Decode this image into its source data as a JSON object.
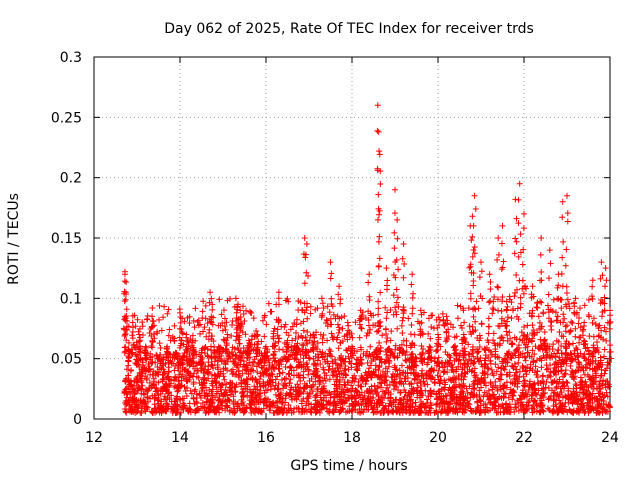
{
  "chart_data": {
    "type": "scatter",
    "title": "Day 062 of 2025, Rate Of TEC Index for receiver trds",
    "xlabel": "GPS time / hours",
    "ylabel": "ROTI / TECUs",
    "xlim": [
      12,
      24
    ],
    "ylim": [
      0,
      0.3
    ],
    "xticks": [
      12,
      14,
      16,
      18,
      20,
      22,
      24
    ],
    "xtick_labels": [
      "12",
      "14",
      "16",
      "18",
      "20",
      "22",
      "24"
    ],
    "yticks": [
      0,
      0.05,
      0.1,
      0.15,
      0.2,
      0.25,
      0.3
    ],
    "ytick_labels": [
      "0",
      "0.05",
      "0.1",
      "0.15",
      "0.2",
      "0.25",
      "0.3"
    ],
    "grid": true,
    "marker": "+",
    "series": [
      {
        "name": "ROTI",
        "color": "#ff0000",
        "x": [
          12.72,
          12.72,
          12.74,
          12.8,
          12.9,
          13.05,
          13.2,
          13.35,
          13.5,
          13.7,
          13.9,
          14.0,
          14.15,
          14.3,
          14.5,
          14.7,
          14.75,
          14.9,
          15.1,
          15.3,
          15.35,
          15.4,
          15.6,
          15.8,
          16.0,
          16.2,
          16.3,
          16.5,
          16.7,
          16.9,
          16.95,
          17.1,
          17.3,
          17.5,
          17.7,
          17.9,
          18.0,
          18.2,
          18.4,
          18.6,
          18.62,
          18.63,
          18.8,
          19.0,
          19.05,
          19.2,
          19.4,
          19.6,
          19.8,
          20.0,
          20.2,
          20.4,
          20.6,
          20.75,
          20.8,
          20.85,
          21.0,
          21.2,
          21.4,
          21.5,
          21.6,
          21.8,
          21.9,
          22.0,
          22.2,
          22.4,
          22.6,
          22.8,
          22.9,
          23.0,
          23.2,
          23.4,
          23.6,
          23.8,
          23.9,
          24.0
        ],
        "values": [
          0.122,
          0.12,
          0.105,
          0.058,
          0.08,
          0.07,
          0.06,
          0.085,
          0.05,
          0.06,
          0.055,
          0.088,
          0.07,
          0.065,
          0.045,
          0.105,
          0.095,
          0.06,
          0.07,
          0.1,
          0.095,
          0.09,
          0.065,
          0.07,
          0.06,
          0.075,
          0.105,
          0.065,
          0.06,
          0.15,
          0.145,
          0.07,
          0.1,
          0.13,
          0.11,
          0.08,
          0.06,
          0.09,
          0.12,
          0.26,
          0.238,
          0.222,
          0.125,
          0.19,
          0.165,
          0.145,
          0.12,
          0.09,
          0.06,
          0.07,
          0.085,
          0.06,
          0.07,
          0.16,
          0.168,
          0.185,
          0.13,
          0.12,
          0.15,
          0.16,
          0.09,
          0.182,
          0.195,
          0.17,
          0.11,
          0.15,
          0.14,
          0.12,
          0.18,
          0.185,
          0.1,
          0.08,
          0.115,
          0.13,
          0.125,
          0.09
        ],
        "band_x": [
          12.7,
          13.0,
          13.5,
          14.0,
          14.5,
          15.0,
          15.5,
          16.0,
          16.5,
          17.0,
          17.5,
          18.0,
          18.5,
          19.0,
          19.5,
          20.0,
          20.5,
          21.0,
          21.5,
          22.0,
          22.5,
          23.0,
          23.5,
          24.0
        ],
        "band_max": [
          0.05,
          0.055,
          0.055,
          0.055,
          0.06,
          0.06,
          0.06,
          0.055,
          0.06,
          0.06,
          0.055,
          0.05,
          0.055,
          0.06,
          0.055,
          0.05,
          0.055,
          0.06,
          0.065,
          0.07,
          0.065,
          0.065,
          0.06,
          0.06
        ]
      }
    ]
  }
}
